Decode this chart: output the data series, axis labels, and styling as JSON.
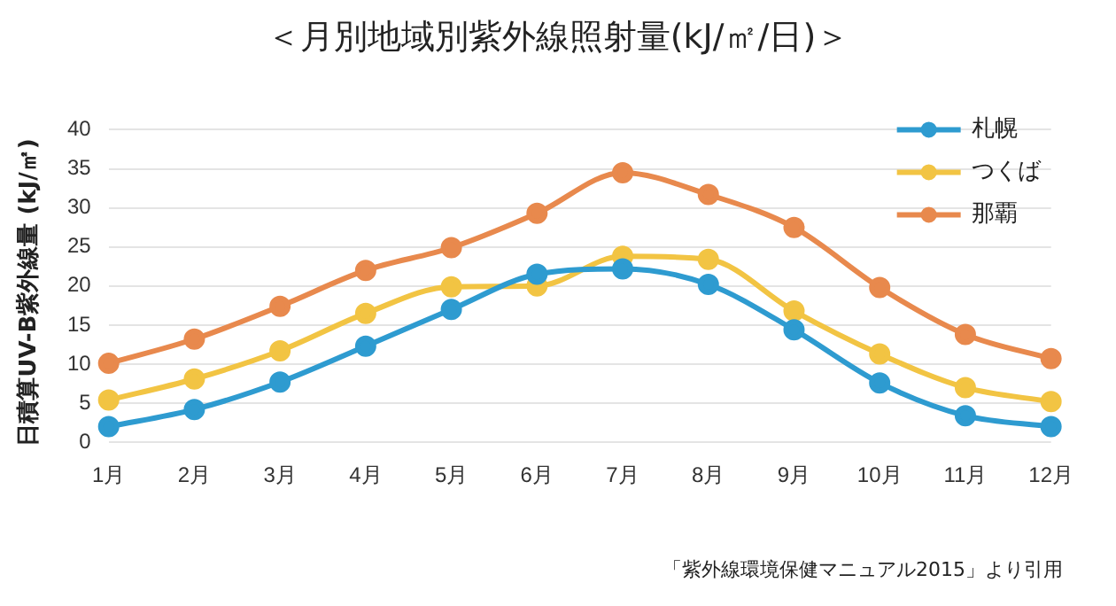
{
  "chart_data": {
    "type": "line",
    "title": "＜月別地域別紫外線照射量(kJ/㎡/日)＞",
    "ylabel": "日積算UV-B紫外線量 (kJ/㎡)",
    "categories": [
      "1月",
      "2月",
      "3月",
      "4月",
      "5月",
      "6月",
      "7月",
      "8月",
      "9月",
      "10月",
      "11月",
      "12月"
    ],
    "series": [
      {
        "name": "札幌",
        "color": "#2e9bd0",
        "values": [
          2.0,
          4.2,
          7.7,
          12.3,
          17.0,
          21.5,
          22.2,
          20.2,
          14.4,
          7.6,
          3.4,
          2.0
        ]
      },
      {
        "name": "つくば",
        "color": "#f2c443",
        "values": [
          5.4,
          8.1,
          11.7,
          16.5,
          19.9,
          20.0,
          23.8,
          23.4,
          16.8,
          11.3,
          7.0,
          5.2
        ]
      },
      {
        "name": "那覇",
        "color": "#e8894d",
        "values": [
          10.1,
          13.2,
          17.4,
          22.0,
          24.9,
          29.3,
          34.5,
          31.7,
          27.5,
          19.8,
          13.8,
          10.7
        ]
      }
    ],
    "ylim": [
      0,
      40
    ],
    "yticks": [
      0,
      5,
      10,
      15,
      20,
      25,
      30,
      35,
      40
    ],
    "grid": "y",
    "legend": "top right",
    "marker": "circle",
    "line_style": "solid",
    "annotations": [
      "「紫外線環境保健マニュアル2015」より引用"
    ]
  }
}
